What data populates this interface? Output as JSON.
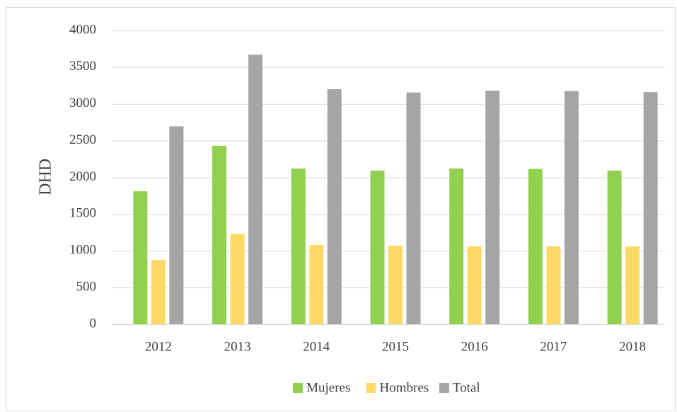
{
  "chart_data": {
    "type": "bar",
    "y_label": "DHD",
    "categories": [
      "2012",
      "2013",
      "2014",
      "2015",
      "2016",
      "2017",
      "2018"
    ],
    "series": [
      {
        "name": "Mujeres",
        "color": "#92d050",
        "values": [
          1810,
          2430,
          2120,
          2090,
          2120,
          2115,
          2090
        ]
      },
      {
        "name": "Hombres",
        "color": "#ffd966",
        "values": [
          875,
          1230,
          1080,
          1070,
          1060,
          1060,
          1060
        ]
      },
      {
        "name": "Total",
        "color": "#a5a5a5",
        "values": [
          2695,
          3670,
          3200,
          3155,
          3180,
          3175,
          3160
        ]
      }
    ],
    "ylim": [
      0,
      4000
    ],
    "yticks": [
      0,
      500,
      1000,
      1500,
      2000,
      2500,
      3000,
      3500,
      4000
    ],
    "grid": true,
    "legend": "bottom"
  }
}
